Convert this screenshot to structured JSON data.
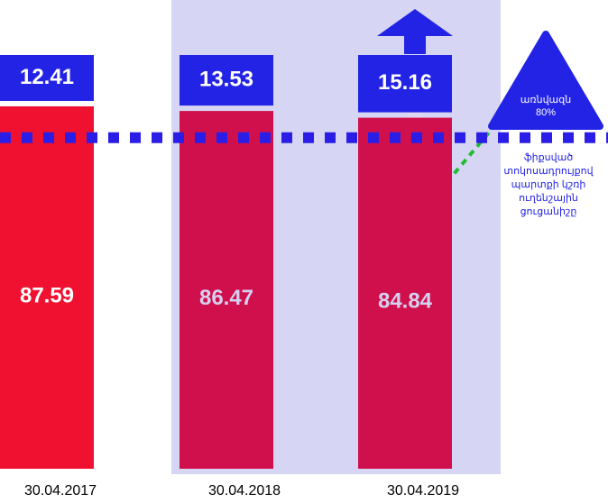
{
  "chart_data": {
    "type": "stacked_bar",
    "categories": [
      "30.04.2017",
      "30.04.2018",
      "30.04.2019"
    ],
    "series": [
      {
        "colors": [
          "#f0102f",
          "#d0104c",
          "#d0104c"
        ],
        "values": [
          87.59,
          86.47,
          84.84
        ]
      },
      {
        "color": "#2323e6",
        "values": [
          12.41,
          13.53,
          15.16
        ]
      }
    ],
    "ylim": [
      0,
      100
    ],
    "threshold": {
      "value": 80,
      "label": "80%",
      "text": "առնվազն",
      "color": "#2a1ee6"
    },
    "annotation": [
      "ֆիքսված",
      "տոկոսադրույքով",
      "պարտքի կշռի",
      "ուղենշային",
      "ցուցանիշը"
    ]
  }
}
